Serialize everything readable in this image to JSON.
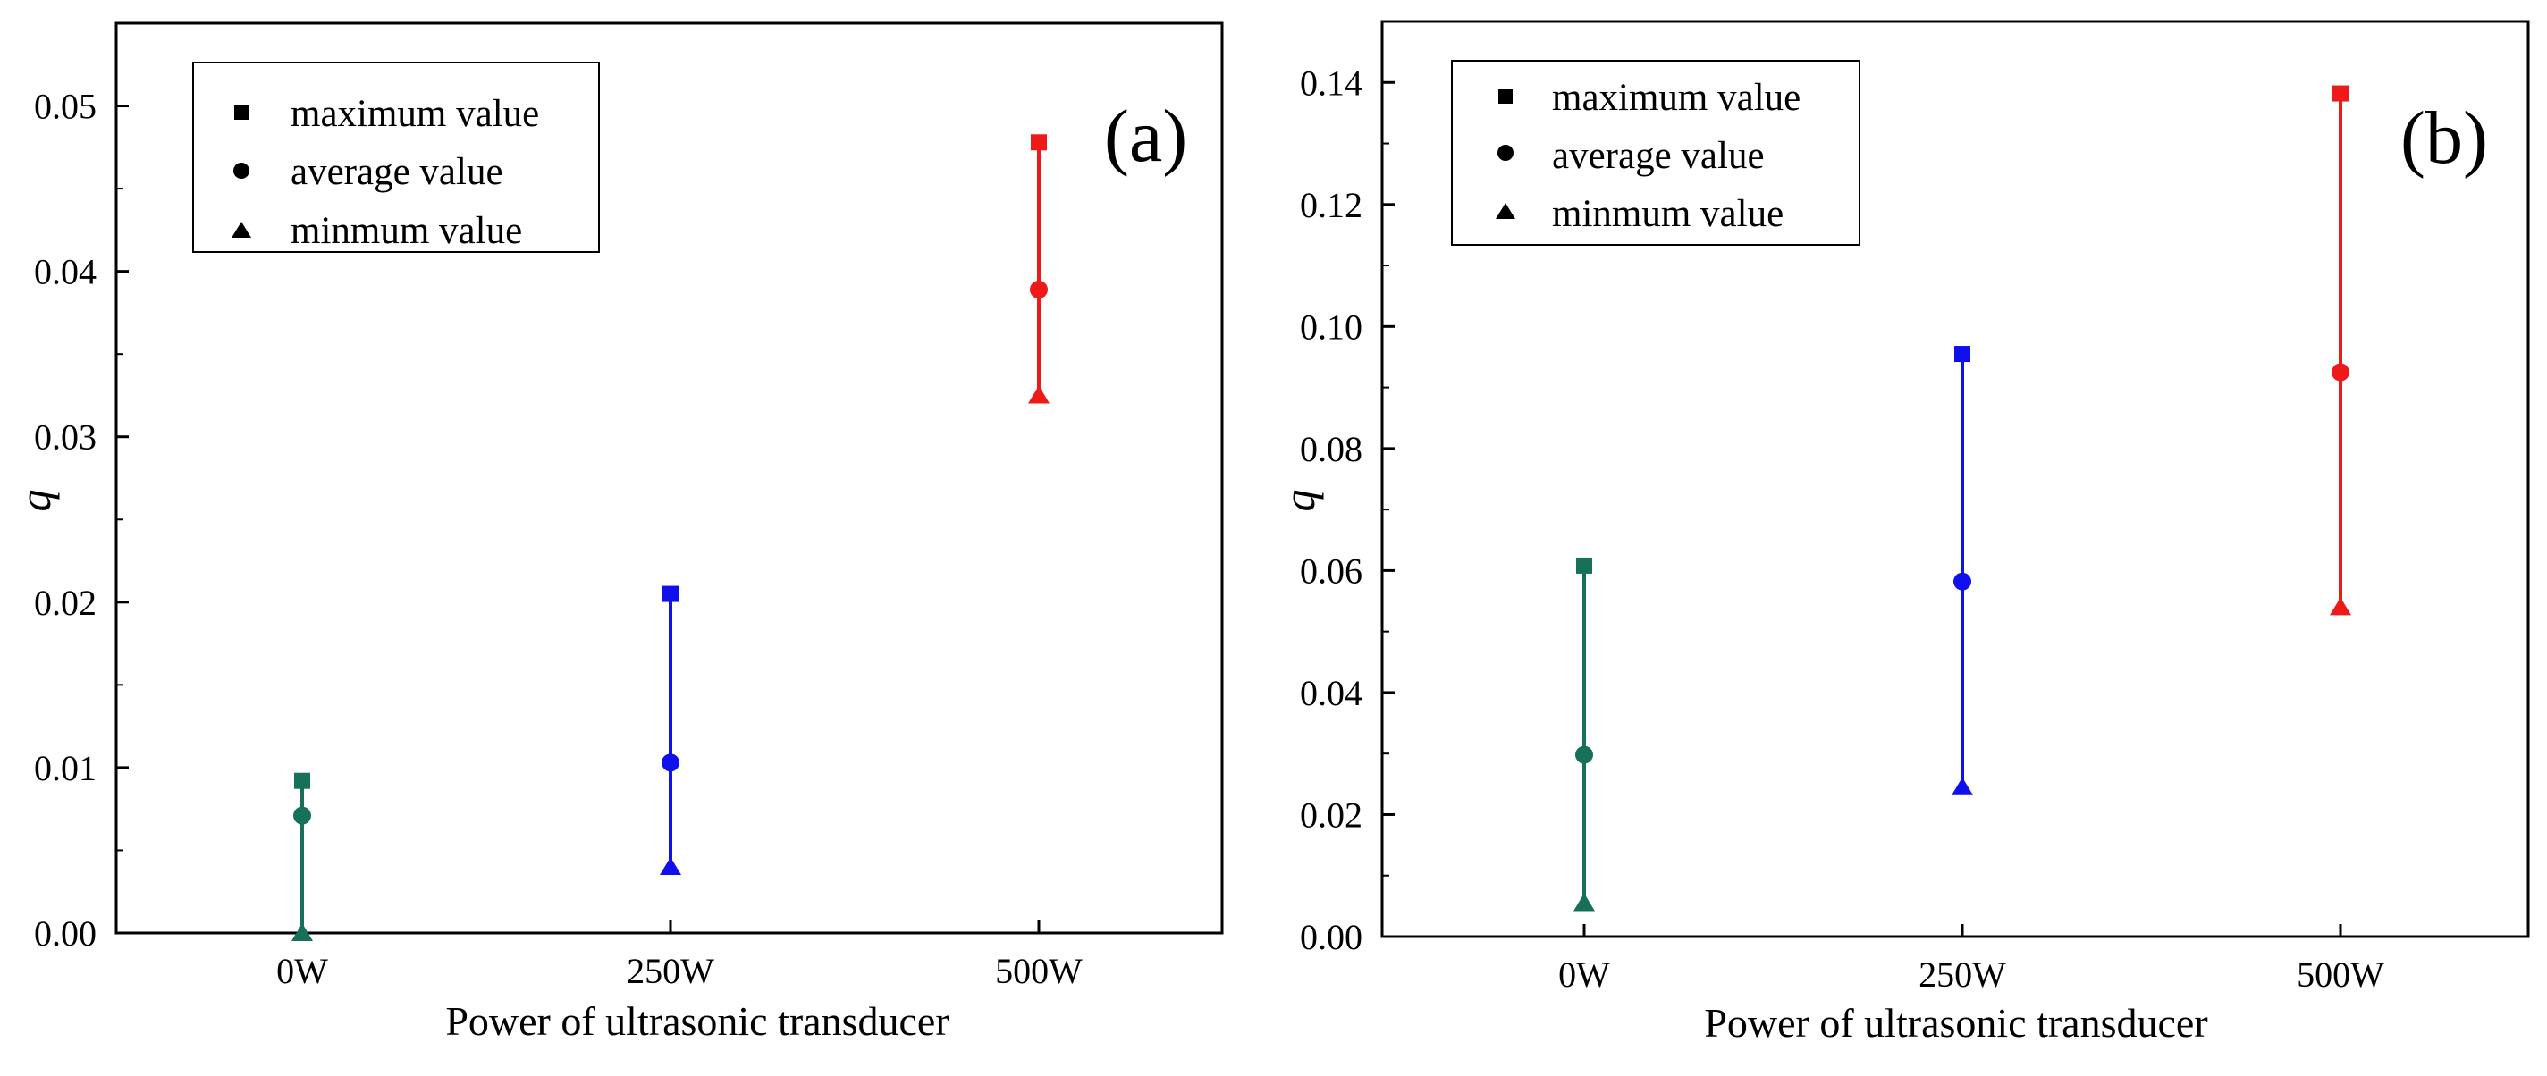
{
  "chart_data": [
    {
      "type": "scatter",
      "panel_label": "(a)",
      "xlabel": "Power of ultrasonic transducer",
      "ylabel": "q",
      "categories": [
        "0W",
        "250W",
        "500W"
      ],
      "ylim": [
        0,
        0.055
      ],
      "yticks": [
        0.0,
        0.01,
        0.02,
        0.03,
        0.04,
        0.05
      ],
      "ytick_labels": [
        "0.00",
        "0.01",
        "0.02",
        "0.03",
        "0.04",
        "0.05"
      ],
      "legend_position": "top-left",
      "legend": [
        {
          "name": "maximum value",
          "marker": "square"
        },
        {
          "name": "average value",
          "marker": "circle"
        },
        {
          "name": "minmum value",
          "marker": "triangle"
        }
      ],
      "series": [
        {
          "name": "maximum value",
          "marker": "square",
          "values": [
            0.0092,
            0.0205,
            0.0478
          ]
        },
        {
          "name": "average value",
          "marker": "circle",
          "values": [
            0.0071,
            0.0103,
            0.0389
          ]
        },
        {
          "name": "minmum value",
          "marker": "triangle",
          "values": [
            0.0,
            0.004,
            0.0325
          ]
        }
      ],
      "colors": [
        "#17705a",
        "#1010ee",
        "#ee1a1a"
      ]
    },
    {
      "type": "scatter",
      "panel_label": "(b)",
      "xlabel": "Power of ultrasonic transducer",
      "ylabel": "q",
      "categories": [
        "0W",
        "250W",
        "500W"
      ],
      "ylim": [
        0,
        0.15
      ],
      "yticks": [
        0.0,
        0.02,
        0.04,
        0.06,
        0.08,
        0.1,
        0.12,
        0.14
      ],
      "ytick_labels": [
        "0.00",
        "0.02",
        "0.04",
        "0.06",
        "0.08",
        "0.10",
        "0.12",
        "0.14"
      ],
      "legend_position": "top-left",
      "legend": [
        {
          "name": "maximum value",
          "marker": "square"
        },
        {
          "name": "average value",
          "marker": "circle"
        },
        {
          "name": "minmum value",
          "marker": "triangle"
        }
      ],
      "series": [
        {
          "name": "maximum value",
          "marker": "square",
          "values": [
            0.0608,
            0.0955,
            0.1382
          ]
        },
        {
          "name": "average value",
          "marker": "circle",
          "values": [
            0.0298,
            0.0582,
            0.0925
          ]
        },
        {
          "name": "minmum value",
          "marker": "triangle",
          "values": [
            0.0055,
            0.0245,
            0.054
          ]
        }
      ],
      "colors": [
        "#17705a",
        "#1010ee",
        "#ee1a1a"
      ]
    }
  ]
}
